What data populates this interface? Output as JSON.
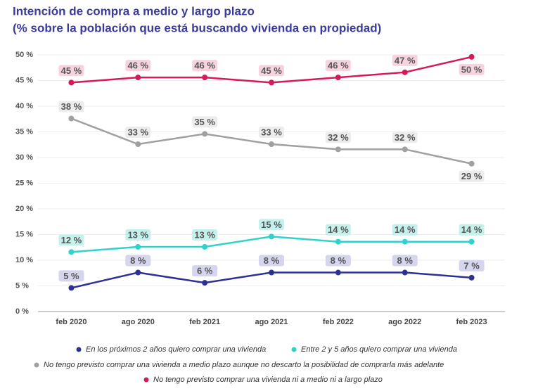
{
  "chart_data": {
    "type": "line",
    "title": "Intención de compra a medio y largo plazo",
    "subtitle": "(% sobre la población que está buscando vivienda en propiedad)",
    "categories": [
      "feb 2020",
      "ago 2020",
      "feb 2021",
      "ago 2021",
      "feb 2022",
      "ago 2022",
      "feb 2023"
    ],
    "ylim": [
      0,
      50
    ],
    "yticks": [
      {
        "value": 0,
        "label": "0 %"
      },
      {
        "value": 5,
        "label": "5 %"
      },
      {
        "value": 10,
        "label": "10 %"
      },
      {
        "value": 15,
        "label": "15 %"
      },
      {
        "value": 20,
        "label": "20 %"
      },
      {
        "value": 25,
        "label": "25 %"
      },
      {
        "value": 30,
        "label": "30 %"
      },
      {
        "value": 35,
        "label": "35 %"
      },
      {
        "value": 40,
        "label": "40 %"
      },
      {
        "value": 45,
        "label": "45 %"
      },
      {
        "value": 50,
        "label": "50 %"
      }
    ],
    "grid": true,
    "series": [
      {
        "name": "En los próximos 2 años quiero comprar una vivienda",
        "color": "#2e3192",
        "values": [
          4.6,
          7.6,
          5.6,
          7.6,
          7.6,
          7.6,
          6.6
        ],
        "value_labels": [
          "5 %",
          "8 %",
          "6 %",
          "8 %",
          "8 %",
          "8 %",
          "7 %"
        ]
      },
      {
        "name": "Entre 2 y 5 años quiero comprar una vivienda",
        "color": "#2fd3c9",
        "values": [
          11.6,
          12.6,
          12.6,
          14.6,
          13.6,
          13.6,
          13.6
        ],
        "value_labels": [
          "12 %",
          "13 %",
          "13 %",
          "15 %",
          "14 %",
          "14 %",
          "14 %"
        ]
      },
      {
        "name": "No tengo previsto comprar una vivienda a medio plazo aunque no descarto la posibilidad de comprarla más adelante",
        "color": "#a0a0a0",
        "values": [
          37.6,
          32.6,
          34.6,
          32.6,
          31.6,
          31.6,
          28.8
        ],
        "value_labels": [
          "38 %",
          "33 %",
          "35 %",
          "33 %",
          "32 %",
          "32 %",
          "29 %"
        ]
      },
      {
        "name": "No tengo previsto comprar una vivienda ni a medio ni a largo plazo",
        "color": "#d6195d",
        "values": [
          44.6,
          45.6,
          45.6,
          44.6,
          45.6,
          46.6,
          49.6
        ],
        "value_labels": [
          "45 %",
          "46 %",
          "46 %",
          "45 %",
          "46 %",
          "47 %",
          "50 %"
        ]
      }
    ]
  }
}
